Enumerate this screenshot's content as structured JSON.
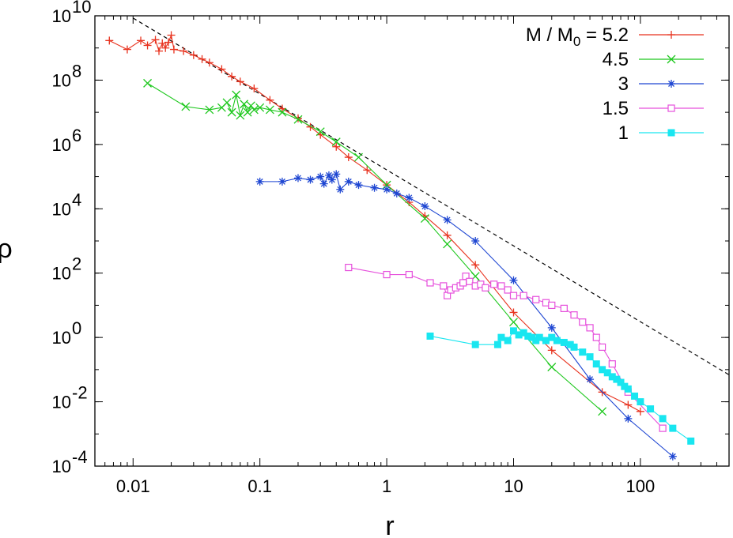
{
  "chart_data": {
    "type": "line",
    "title": "",
    "xlabel": "r",
    "ylabel": "ρ",
    "x_scale": "log",
    "y_scale": "log",
    "xlim": [
      0.005,
      500
    ],
    "ylim": [
      0.0001,
      10000000000
    ],
    "grid": false,
    "legend_position": "top-right",
    "x_ticks": [
      {
        "value": 0.01,
        "label": "0.01"
      },
      {
        "value": 0.1,
        "label": "0.1"
      },
      {
        "value": 1,
        "label": "1"
      },
      {
        "value": 10,
        "label": "10"
      },
      {
        "value": 100,
        "label": "100"
      }
    ],
    "y_ticks": [
      {
        "value": 0.0001,
        "base": "10",
        "exp": "-4"
      },
      {
        "value": 0.01,
        "base": "10",
        "exp": "-2"
      },
      {
        "value": 1,
        "base": "10",
        "exp": "0"
      },
      {
        "value": 100,
        "base": "10",
        "exp": "2"
      },
      {
        "value": 10000,
        "base": "10",
        "exp": "4"
      },
      {
        "value": 1000000,
        "base": "10",
        "exp": "6"
      },
      {
        "value": 100000000,
        "base": "10",
        "exp": "8"
      },
      {
        "value": 10000000000,
        "base": "10",
        "exp": "10"
      }
    ],
    "legend_header": {
      "prefix": "M / M",
      "subscript": "0",
      "suffix": " = 5.2"
    },
    "reference_line": {
      "style": "dashed",
      "color": "#000000",
      "x": [
        0.01,
        500
      ],
      "y": [
        8500000000,
        0.069
      ]
    },
    "series": [
      {
        "name": "5.2",
        "color": "#e8321e",
        "marker": "plus",
        "x": [
          0.0065,
          0.009,
          0.0115,
          0.013,
          0.015,
          0.016,
          0.017,
          0.018,
          0.019,
          0.02,
          0.021,
          0.025,
          0.03,
          0.035,
          0.04,
          0.05,
          0.06,
          0.07,
          0.09,
          0.12,
          0.15,
          0.2,
          0.25,
          0.3,
          0.4,
          0.5,
          0.7,
          1,
          1.5,
          2,
          3,
          5,
          10,
          20,
          50,
          80,
          100
        ],
        "y": [
          1700000000,
          900000000,
          1700000000,
          1200000000,
          1800000000,
          800000000,
          1400000000,
          1000000000,
          1500000000,
          2500000000,
          900000000,
          800000000,
          600000000,
          450000000,
          350000000,
          220000000,
          130000000,
          90000000,
          55000000,
          24000000,
          13000000,
          6500000,
          3500000,
          2000000,
          850000,
          400000,
          160000,
          55000,
          16000,
          6000,
          1500,
          180,
          6,
          0.4,
          0.02,
          0.008,
          0.005
        ]
      },
      {
        "name": "4.5",
        "color": "#1ec81e",
        "marker": "cross",
        "x": [
          0.013,
          0.026,
          0.04,
          0.05,
          0.055,
          0.06,
          0.065,
          0.07,
          0.075,
          0.08,
          0.085,
          0.09,
          0.1,
          0.12,
          0.15,
          0.2,
          0.3,
          0.4,
          0.6,
          1,
          2,
          3,
          5,
          10,
          20,
          50
        ],
        "y": [
          80000000,
          15000000,
          12000000,
          14000000,
          20000000,
          10000000,
          35000000,
          8000000,
          18000000,
          10000000,
          16000000,
          12000000,
          14000000,
          12000000,
          10000000,
          6000000,
          2500000,
          1200000,
          400000,
          55000,
          5000,
          800,
          80,
          3,
          0.12,
          0.005
        ]
      },
      {
        "name": "3",
        "color": "#1e46d2",
        "marker": "star",
        "x": [
          0.1,
          0.15,
          0.2,
          0.25,
          0.3,
          0.32,
          0.35,
          0.37,
          0.4,
          0.43,
          0.5,
          0.6,
          0.8,
          1,
          1.2,
          1.5,
          2,
          3,
          5,
          10,
          20,
          40,
          80,
          180
        ],
        "y": [
          70000,
          70000,
          90000,
          80000,
          100000,
          60000,
          110000,
          80000,
          120000,
          40000,
          70000,
          55000,
          45000,
          40000,
          30000,
          22000,
          12000,
          4500,
          1000,
          60,
          2,
          0.05,
          0.003,
          0.0002
        ]
      },
      {
        "name": "1.5",
        "color": "#e650dc",
        "marker": "square",
        "x": [
          0.5,
          1,
          1.5,
          2.2,
          2.8,
          3,
          3.2,
          3.5,
          3.8,
          4,
          4.2,
          4.5,
          5,
          5.5,
          6,
          7,
          8,
          9,
          10,
          12,
          15,
          18,
          20,
          25,
          30,
          35,
          40,
          45,
          50,
          60,
          80,
          150
        ],
        "y": [
          150,
          90,
          90,
          50,
          40,
          20,
          30,
          35,
          40,
          50,
          80,
          55,
          40,
          45,
          35,
          45,
          40,
          30,
          20,
          20,
          15,
          12,
          10,
          8,
          5,
          3,
          2,
          1,
          0.5,
          0.15,
          0.02,
          0.0015
        ]
      },
      {
        "name": "1",
        "color": "#19e6f0",
        "marker": "filled-square",
        "x": [
          2.2,
          5,
          7.5,
          8,
          9,
          10,
          11,
          12,
          13,
          14,
          15,
          16,
          18,
          20,
          22,
          25,
          28,
          30,
          35,
          40,
          45,
          50,
          55,
          60,
          65,
          70,
          75,
          80,
          90,
          100,
          120,
          150,
          180,
          250
        ],
        "y": [
          1.1,
          0.6,
          0.6,
          1,
          0.8,
          1.6,
          1.2,
          1.4,
          1.1,
          1,
          0.8,
          1,
          0.8,
          1,
          0.8,
          0.7,
          0.6,
          0.5,
          0.35,
          0.25,
          0.15,
          0.1,
          0.08,
          0.06,
          0.05,
          0.04,
          0.03,
          0.025,
          0.015,
          0.01,
          0.006,
          0.003,
          0.0015,
          0.0006
        ]
      }
    ]
  }
}
